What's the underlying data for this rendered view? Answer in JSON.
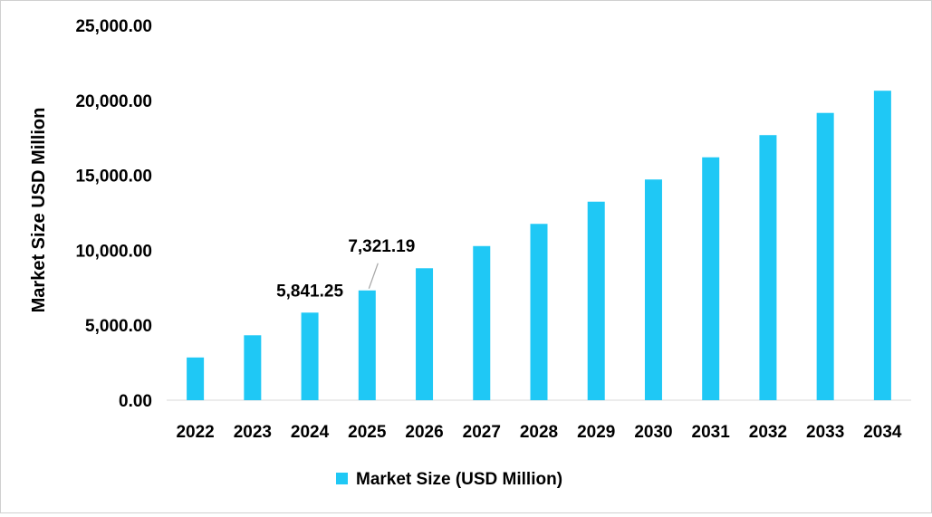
{
  "chart_data": {
    "type": "bar",
    "title": "",
    "xlabel": "",
    "ylabel": "Market Size USD Million",
    "categories": [
      "2022",
      "2023",
      "2024",
      "2025",
      "2026",
      "2027",
      "2028",
      "2029",
      "2030",
      "2031",
      "2032",
      "2033",
      "2034"
    ],
    "series": [
      {
        "name": "Market Size (USD Million)",
        "color": "#1FC8F5",
        "values": [
          2850,
          4330,
          5841.25,
          7321.19,
          8800,
          10280,
          11760,
          13240,
          14720,
          16200,
          17680,
          19160,
          20640
        ]
      }
    ],
    "ylim": [
      0,
      25000
    ],
    "yticks": [
      "0.00",
      "5,000.00",
      "10,000.00",
      "15,000.00",
      "20,000.00",
      "25,000.00"
    ],
    "data_labels": [
      {
        "category": "2024",
        "text": "5,841.25"
      },
      {
        "category": "2025",
        "text": "7,321.19"
      }
    ],
    "grid": false,
    "legend_position": "bottom-center",
    "legend_label": "Market Size (USD Million)"
  }
}
